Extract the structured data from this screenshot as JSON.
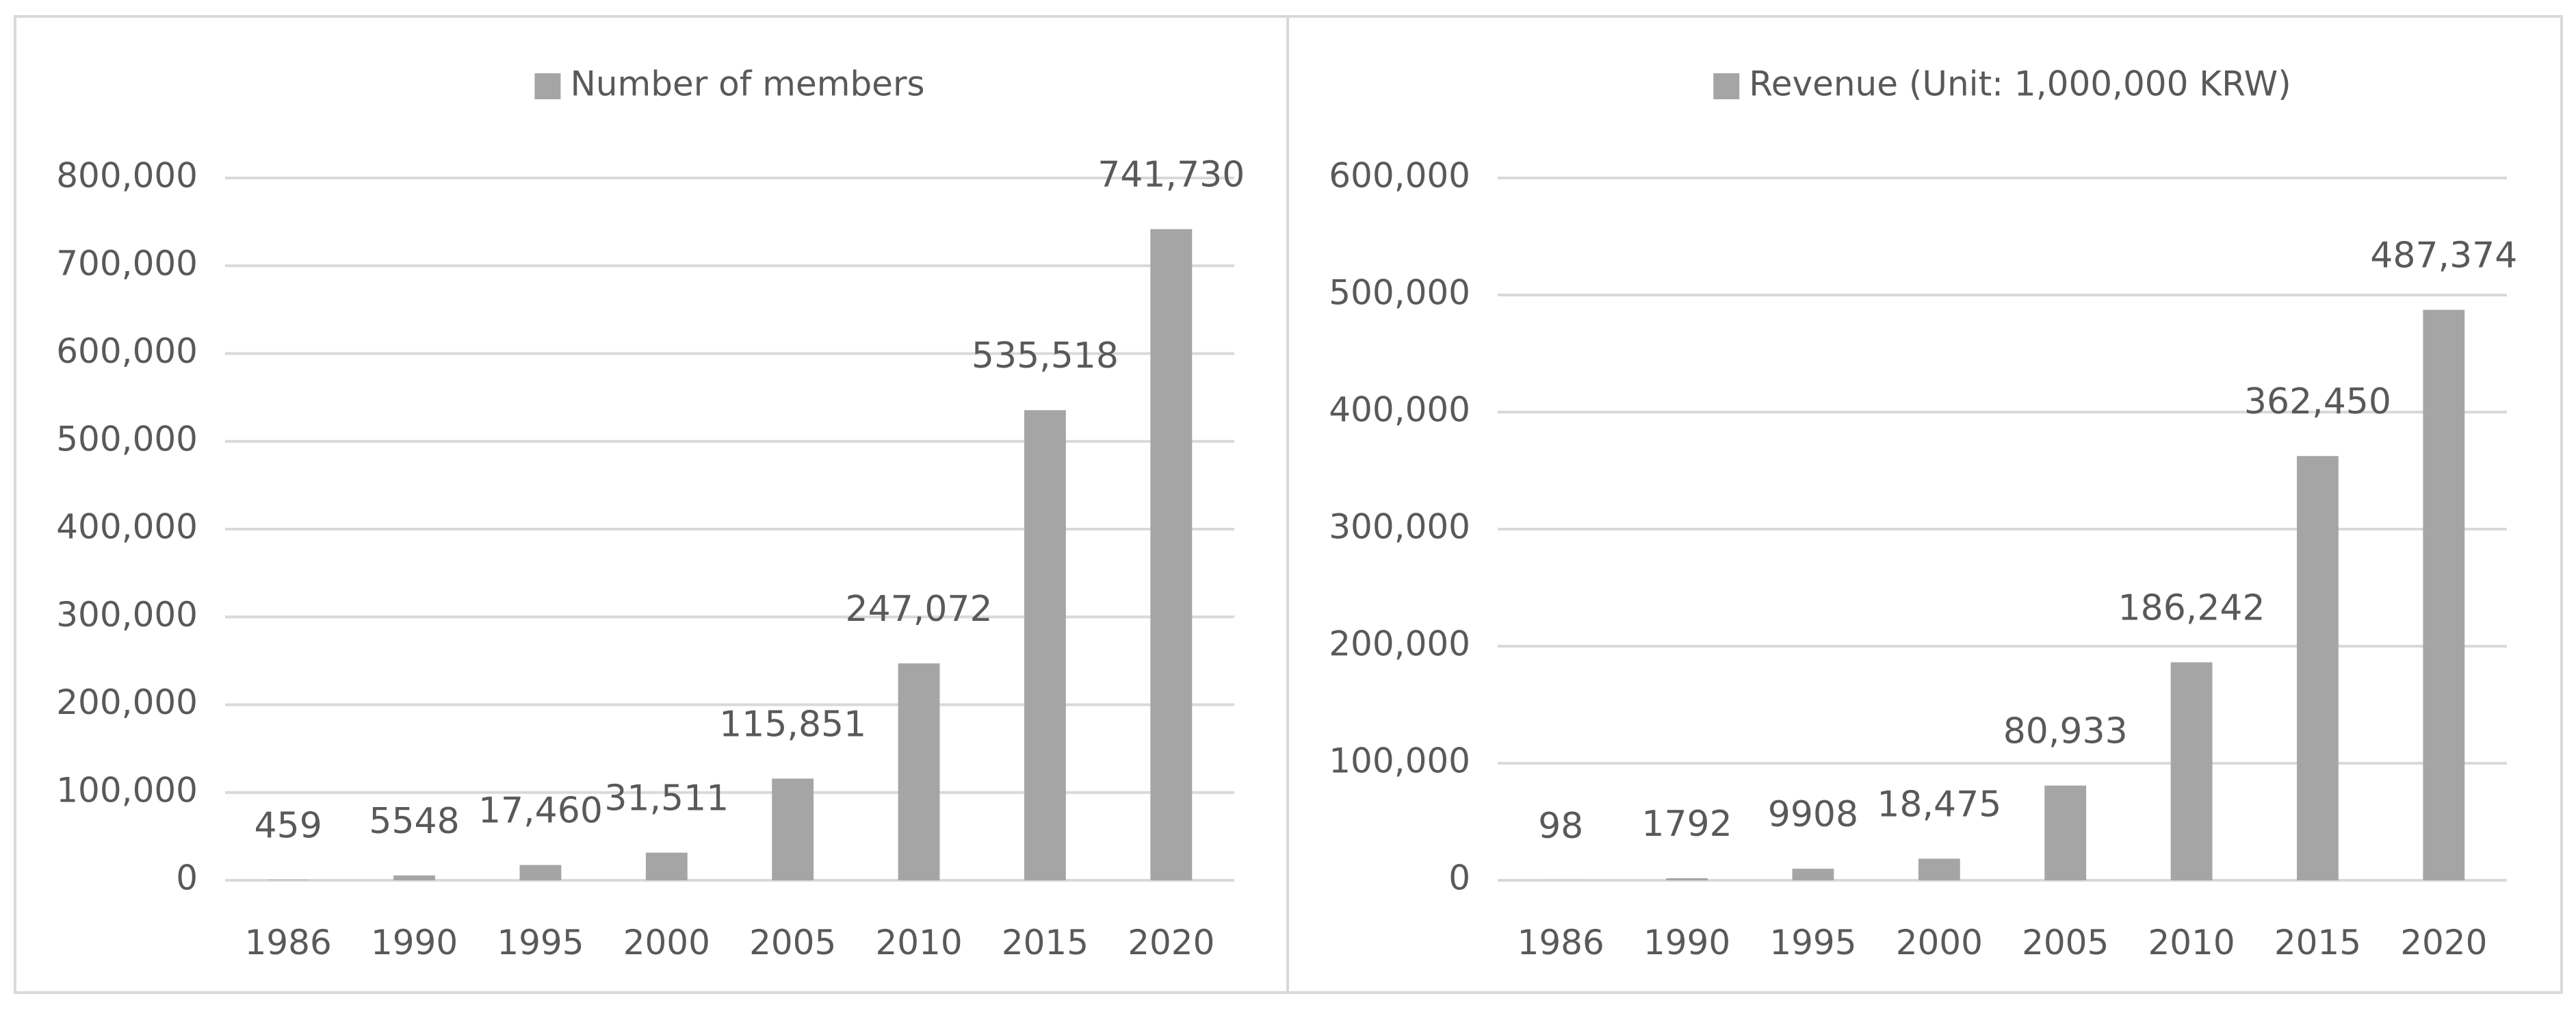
{
  "colors": {
    "bar": "#a5a5a5",
    "grid": "#d9d9d9",
    "text": "#595959",
    "border": "#d9d9d9"
  },
  "chart_data": [
    {
      "type": "bar",
      "legend": "Number of members",
      "legend_position": "top-center",
      "categories": [
        "1986",
        "1990",
        "1995",
        "2000",
        "2005",
        "2010",
        "2015",
        "2020"
      ],
      "values": [
        459,
        5548,
        17460,
        31511,
        115851,
        247072,
        535518,
        741730
      ],
      "data_labels": [
        "459",
        "5548",
        "17,460",
        "31,511",
        "115,851",
        "247,072",
        "535,518",
        "741,730"
      ],
      "yticks": [
        0,
        100000,
        200000,
        300000,
        400000,
        500000,
        600000,
        700000,
        800000
      ],
      "ytick_labels": [
        "0",
        "100,000",
        "200,000",
        "300,000",
        "400,000",
        "500,000",
        "600,000",
        "700,000",
        "800,000"
      ],
      "ylim": [
        0,
        800000
      ],
      "grid": true
    },
    {
      "type": "bar",
      "legend": "Revenue (Unit: 1,000,000 KRW)",
      "legend_position": "top-center",
      "categories": [
        "1986",
        "1990",
        "1995",
        "2000",
        "2005",
        "2010",
        "2015",
        "2020"
      ],
      "values": [
        98,
        1792,
        9908,
        18475,
        80933,
        186242,
        362450,
        487374
      ],
      "data_labels": [
        "98",
        "1792",
        "9908",
        "18,475",
        "80,933",
        "186,242",
        "362,450",
        "487,374"
      ],
      "yticks": [
        0,
        100000,
        200000,
        300000,
        400000,
        500000,
        600000
      ],
      "ytick_labels": [
        "0",
        "100,000",
        "200,000",
        "300,000",
        "400,000",
        "500,000",
        "600,000"
      ],
      "ylim": [
        0,
        600000
      ],
      "grid": true
    }
  ]
}
